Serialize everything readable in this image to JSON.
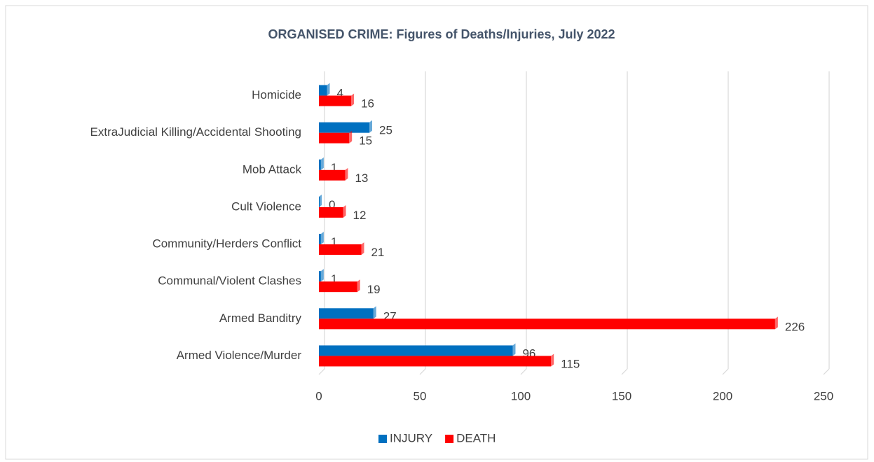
{
  "chart_data": {
    "type": "bar",
    "orientation": "horizontal",
    "title": "ORGANISED CRIME: Figures of Deaths/Injuries, July 2022",
    "categories": [
      "Homicide",
      "ExtraJudicial Killing/Accidental Shooting",
      "Mob Attack",
      "Cult Violence",
      "Community/Herders Conflict",
      "Communal/Violent Clashes",
      "Armed Banditry",
      "Armed Violence/Murder"
    ],
    "series": [
      {
        "name": "INJURY",
        "color": "#0070c0",
        "values": [
          4,
          25,
          1,
          0,
          1,
          1,
          27,
          96
        ]
      },
      {
        "name": "DEATH",
        "color": "#ff0000",
        "values": [
          16,
          15,
          13,
          12,
          21,
          19,
          226,
          115
        ]
      }
    ],
    "xlim": [
      0,
      250
    ],
    "xticks": [
      0,
      50,
      100,
      150,
      200,
      250
    ],
    "grid": true,
    "legend": "bottom"
  }
}
